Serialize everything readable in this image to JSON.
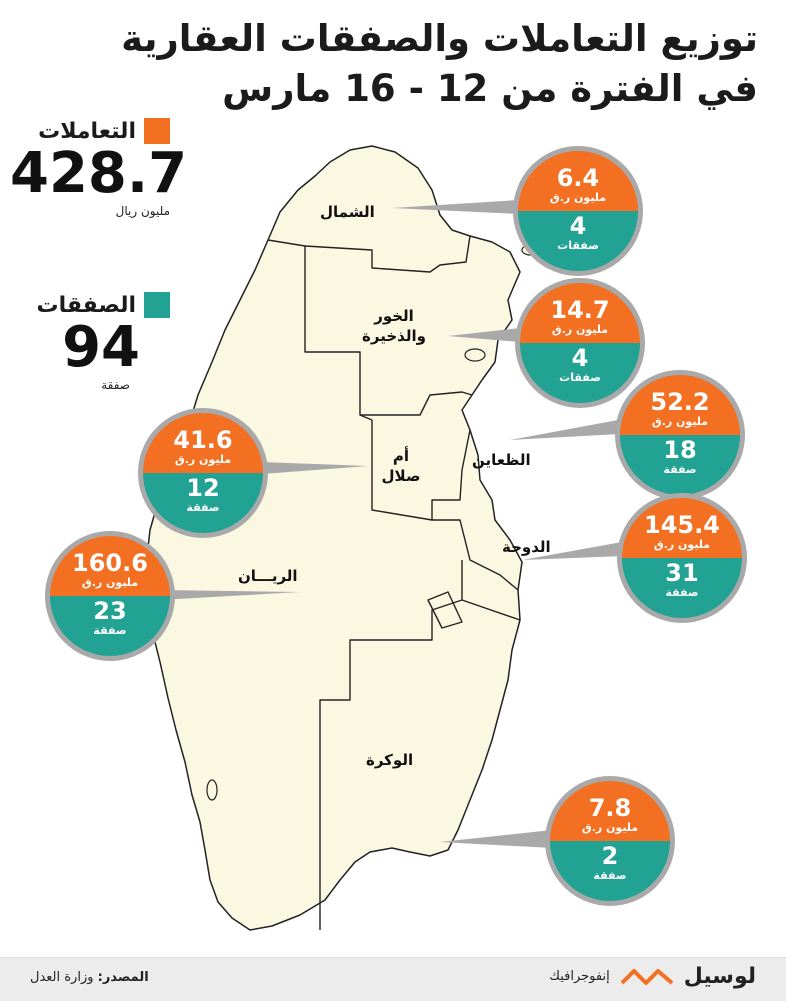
{
  "title": {
    "line1": "توزيع التعاملات والصفقات العقارية",
    "line2": "في الفترة من 12 - 16 مارس"
  },
  "totals": {
    "transactions": {
      "label": "التعاملات",
      "value": "428.7",
      "unit": "مليون ريال",
      "color": "#f36f21"
    },
    "deals": {
      "label": "الصفقات",
      "value": "94",
      "unit": "صفقة",
      "color": "#21a293"
    }
  },
  "colors": {
    "orange": "#f36f21",
    "teal": "#21a293",
    "land": "#fbf8e2",
    "border": "#222222",
    "ring": "#a9a9a9"
  },
  "regions": [
    {
      "id": "shamal",
      "label": "الشمال",
      "value": "6.4",
      "value_unit": "مليون ر.ق",
      "deals": "4",
      "deals_unit": "صفقات"
    },
    {
      "id": "khor",
      "label": "الخور والذخيرة",
      "value": "14.7",
      "value_unit": "مليون ر.ق",
      "deals": "4",
      "deals_unit": "صفقات"
    },
    {
      "id": "daayen",
      "label": "الظعاين",
      "value": "52.2",
      "value_unit": "مليون ر.ق",
      "deals": "18",
      "deals_unit": "صفقة"
    },
    {
      "id": "umm-salal",
      "label": "أم صلال",
      "value": "41.6",
      "value_unit": "مليون ر.ق",
      "deals": "12",
      "deals_unit": "صفقة"
    },
    {
      "id": "doha",
      "label": "الدوحة",
      "value": "145.4",
      "value_unit": "مليون ر.ق",
      "deals": "31",
      "deals_unit": "صفقة"
    },
    {
      "id": "rayyan",
      "label": "الريـــان",
      "value": "160.6",
      "value_unit": "مليون ر.ق",
      "deals": "23",
      "deals_unit": "صفقة"
    },
    {
      "id": "wakra",
      "label": "الوكرة",
      "value": "7.8",
      "value_unit": "مليون ر.ق",
      "deals": "2",
      "deals_unit": "صفقة"
    }
  ],
  "footer": {
    "source_label": "المصدر:",
    "source_value": "وزارة العدل",
    "brand": "لوسيل",
    "kind": "إنفوجرافيك"
  }
}
